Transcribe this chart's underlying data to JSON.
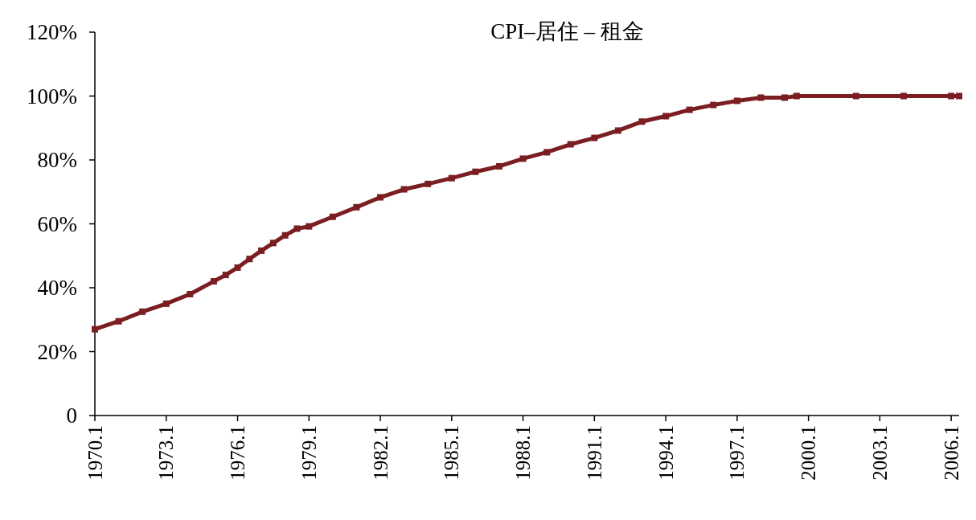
{
  "chart_data": {
    "type": "line",
    "title": "CPI–居住 – 租金",
    "x": [
      "1970-01",
      "1971-01",
      "1972-01",
      "1973-01",
      "1974-01",
      "1975-01",
      "1975-07",
      "1976-01",
      "1976-07",
      "1977-01",
      "1977-07",
      "1978-01",
      "1978-07",
      "1979-01",
      "1980-01",
      "1981-01",
      "1982-01",
      "1983-01",
      "1984-01",
      "1985-01",
      "1986-01",
      "1987-01",
      "1988-01",
      "1989-01",
      "1990-01",
      "1991-01",
      "1992-01",
      "1993-01",
      "1994-01",
      "1995-01",
      "1996-01",
      "1997-01",
      "1998-01",
      "1999-01",
      "1999-07",
      "2002-01",
      "2004-01",
      "2006-01",
      "2006-05"
    ],
    "series": [
      {
        "color": "#7a1e21",
        "values": [
          27,
          29.5,
          32.5,
          35,
          38,
          42,
          44,
          46.3,
          49,
          51.6,
          54,
          56.4,
          58.5,
          59.2,
          62.2,
          65.2,
          68.3,
          70.8,
          72.5,
          74.3,
          76.3,
          78,
          80.4,
          82.4,
          84.9,
          86.9,
          89.2,
          92,
          93.7,
          95.7,
          97.2,
          98.5,
          99.5,
          99.5,
          100,
          100,
          100,
          100,
          100
        ]
      }
    ],
    "xlim": [
      "1970-01",
      "2006-05"
    ],
    "xticks": [
      {
        "value": "1970-01",
        "label": "1970.1"
      },
      {
        "value": "1973-01",
        "label": "1973.1"
      },
      {
        "value": "1976-01",
        "label": "1976.1"
      },
      {
        "value": "1979-01",
        "label": "1979.1"
      },
      {
        "value": "1982-01",
        "label": "1982.1"
      },
      {
        "value": "1985-01",
        "label": "1985.1"
      },
      {
        "value": "1988-01",
        "label": "1988.1"
      },
      {
        "value": "1991-01",
        "label": "1991.1"
      },
      {
        "value": "1994-01",
        "label": "1994.1"
      },
      {
        "value": "1997-01",
        "label": "1997.1"
      },
      {
        "value": "2000-01",
        "label": "2000.1"
      },
      {
        "value": "2003-01",
        "label": "2003.1"
      },
      {
        "value": "2006-01",
        "label": "2006.1"
      }
    ],
    "ylim": [
      0,
      120
    ],
    "yticks": [
      0,
      {
        "value": 20,
        "label": "20%"
      },
      {
        "value": 40,
        "label": "40%"
      },
      {
        "value": 60,
        "label": "60%"
      },
      {
        "value": 80,
        "label": "80%"
      },
      {
        "value": 100,
        "label": "100%"
      },
      {
        "value": 120,
        "label": "120%"
      }
    ],
    "grid": false,
    "marker": "square",
    "line_style": "solid"
  }
}
